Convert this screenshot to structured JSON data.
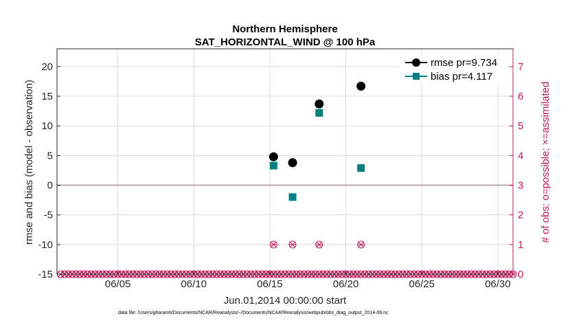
{
  "chart_data": {
    "type": "scatter",
    "title": "Northern Hemisphere",
    "subtitle": "SAT_HORIZONTAL_WIND @ 100 hPa",
    "xlabel": "Jun.01,2014 00:00:00 start",
    "ylabel": "rmse and bias (model - observation)",
    "ylabel_right": "# of obs: o=possible; ×=assimilated",
    "xlim": [
      1,
      31
    ],
    "ylim": [
      -15,
      23
    ],
    "ylim_right": [
      0,
      7.6
    ],
    "x_ticks": [
      5,
      10,
      15,
      20,
      25,
      30
    ],
    "x_tick_labels": [
      "06/05",
      "06/10",
      "06/15",
      "06/20",
      "06/25",
      "06/30"
    ],
    "y_ticks": [
      -15,
      -10,
      -5,
      0,
      5,
      10,
      15,
      20
    ],
    "y_tick_labels": [
      "-15",
      "-10",
      "-5",
      "0",
      "5",
      "10",
      "15",
      "20"
    ],
    "y_right_ticks": [
      0,
      1,
      2,
      3,
      4,
      5,
      6,
      7
    ],
    "y_right_tick_labels": [
      "0",
      "1",
      "2",
      "3",
      "4",
      "5",
      "6",
      "7"
    ],
    "grid": true,
    "legend_position": "top-right",
    "series": [
      {
        "name": "rmse",
        "legend": "rmse pr=9.734",
        "color": "#000000",
        "marker": "circle",
        "x": [
          15.25,
          16.5,
          18.25,
          21.0
        ],
        "y": [
          4.8,
          3.8,
          13.7,
          16.7
        ]
      },
      {
        "name": "bias",
        "legend": "bias pr=4.117",
        "color": "#008080",
        "marker": "square",
        "x": [
          15.25,
          16.5,
          18.25,
          21.0
        ],
        "y": [
          3.3,
          -2.0,
          12.2,
          2.9
        ]
      }
    ],
    "obs_counts": {
      "color": "#c2185b",
      "x_start": 1.25,
      "x_step": 0.25,
      "x_end": 31.0,
      "nonzero": [
        {
          "x": 15.25,
          "possible": 1,
          "assimilated": 1
        },
        {
          "x": 16.5,
          "possible": 1,
          "assimilated": 1
        },
        {
          "x": 18.25,
          "possible": 1,
          "assimilated": 1
        },
        {
          "x": 21.0,
          "possible": 1,
          "assimilated": 1
        }
      ]
    },
    "footnote": "data file: /Users/gharamti/Documents/NCAR/Reanalysis/~/Documents/NCAR/Reanalysis/webpub/obs_diag_output_2014-06.nc"
  }
}
